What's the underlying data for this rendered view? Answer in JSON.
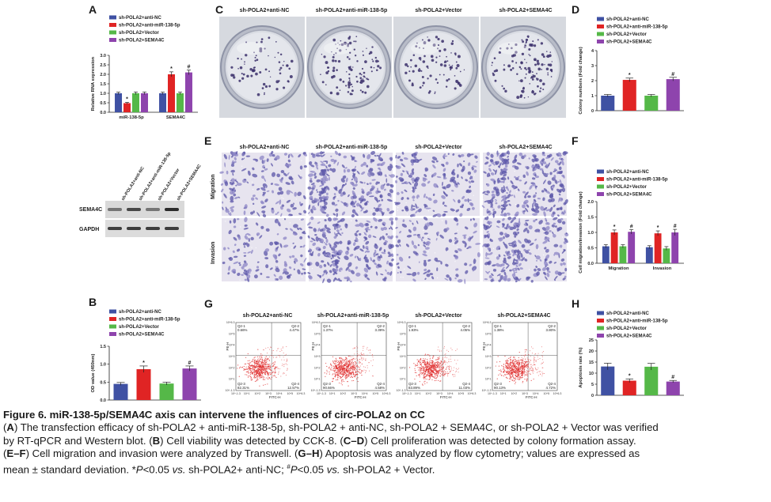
{
  "legend_items": [
    {
      "label": "sh-POLA2+anti-NC",
      "color": "#3f51a3"
    },
    {
      "label": "sh-POLA2+anti-miR-138-5p",
      "color": "#e02424"
    },
    {
      "label": "sh-POLA2+Vector",
      "color": "#55b848"
    },
    {
      "label": "sh-POLA2+SEMA4C",
      "color": "#8e44ad"
    }
  ],
  "panels": {
    "A": {
      "letter": "A"
    },
    "B": {
      "letter": "B"
    },
    "C": {
      "letter": "C"
    },
    "D": {
      "letter": "D"
    },
    "E": {
      "letter": "E"
    },
    "F": {
      "letter": "F"
    },
    "G": {
      "letter": "G"
    },
    "H": {
      "letter": "H"
    }
  },
  "group_labels": [
    "sh-POLA2+anti-NC",
    "sh-POLA2+anti-miR-138-5p",
    "sh-POLA2+Vector",
    "sh-POLA2+SEMA4C"
  ],
  "blot": {
    "lane_labels": [
      "sh-POLA2+anti-NC",
      "sh-POLA2+anti-miR-138-5p",
      "sh-POLA2+Vector",
      "sh-POLA2+SEMA4C"
    ],
    "row_labels": [
      "SEMA4C",
      "GAPDH"
    ]
  },
  "transwell_rows": [
    "Migration",
    "Invasion"
  ],
  "flow": {
    "axis_x": "FITC-H",
    "axis_y": "PE-H",
    "ticks": [
      "10^-1.3",
      "10^1",
      "10^2",
      "10^3",
      "10^4",
      "10^5",
      "10^6.3"
    ],
    "quadrants": [
      {
        "q1": "Q2-1",
        "q1v": "0.66%",
        "q2": "Q2-2",
        "q2v": "4.47%",
        "q3": "Q2-3",
        "q3v": "82.31%",
        "q4": "Q2-4",
        "q4v": "12.57%"
      },
      {
        "q1": "Q2-1",
        "q1v": "1.37%",
        "q2": "Q2-2",
        "q2v": "3.39%",
        "q3": "Q2-3",
        "q3v": "90.66%",
        "q4": "Q2-4",
        "q4v": "4.58%"
      },
      {
        "q1": "Q2-1",
        "q1v": "1.93%",
        "q2": "Q2-2",
        "q2v": "4.05%",
        "q3": "Q2-3",
        "q3v": "83.89%",
        "q4": "Q2-4",
        "q4v": "11.03%"
      },
      {
        "q1": "Q2-1",
        "q1v": "1.38%",
        "q2": "Q2-2",
        "q2v": "3.80%",
        "q3": "Q2-3",
        "q3v": "90.13%",
        "q4": "Q2-4",
        "q4v": "4.72%"
      }
    ]
  },
  "chart_data": [
    {
      "panel": "A",
      "type": "bar",
      "ylabel": "Relative RNA expression",
      "categories": [
        "miR-138-5p",
        "SEMA4C"
      ],
      "ylim": [
        0,
        3.0
      ],
      "yticks": [
        "0.0",
        "0.5",
        "1.0",
        "1.5",
        "2.0",
        "2.5",
        "3.0"
      ],
      "series": [
        {
          "name": "sh-POLA2+anti-NC",
          "values": [
            1.0,
            1.0
          ],
          "err": [
            0.06,
            0.06
          ]
        },
        {
          "name": "sh-POLA2+anti-miR-138-5p",
          "values": [
            0.48,
            2.0
          ],
          "err": [
            0.04,
            0.13
          ]
        },
        {
          "name": "sh-POLA2+Vector",
          "values": [
            1.0,
            1.0
          ],
          "err": [
            0.07,
            0.06
          ]
        },
        {
          "name": "sh-POLA2+SEMA4C",
          "values": [
            1.0,
            2.1
          ],
          "err": [
            0.07,
            0.12
          ]
        }
      ],
      "annotations": [
        {
          "text": "*",
          "category": 0,
          "series": 1
        },
        {
          "text": "*",
          "category": 1,
          "series": 1
        },
        {
          "text": "#",
          "category": 1,
          "series": 3
        }
      ]
    },
    {
      "panel": "B",
      "type": "bar",
      "ylabel": "OD value (450nm)",
      "categories": [
        "sh-POLA2+anti-NC",
        "sh-POLA2+anti-miR-138-5p",
        "sh-POLA2+Vector",
        "sh-POLA2+SEMA4C"
      ],
      "ylim": [
        0,
        1.5
      ],
      "yticks": [
        "0.0",
        "0.5",
        "1.0",
        "1.5"
      ],
      "values": [
        0.45,
        0.86,
        0.46,
        0.88
      ],
      "err": [
        0.04,
        0.09,
        0.04,
        0.07
      ],
      "annotations": [
        {
          "text": "*",
          "index": 1
        },
        {
          "text": "#",
          "index": 3
        }
      ]
    },
    {
      "panel": "D",
      "type": "bar",
      "ylabel": "Colony numbers (Fold change)",
      "categories": [
        "sh-POLA2+anti-NC",
        "sh-POLA2+anti-miR-138-5p",
        "sh-POLA2+Vector",
        "sh-POLA2+SEMA4C"
      ],
      "ylim": [
        0,
        4
      ],
      "yticks": [
        "0",
        "1",
        "2",
        "3",
        "4"
      ],
      "values": [
        1.0,
        2.05,
        1.0,
        2.1
      ],
      "err": [
        0.08,
        0.12,
        0.08,
        0.12
      ],
      "annotations": [
        {
          "text": "*",
          "index": 1
        },
        {
          "text": "#",
          "index": 3
        }
      ]
    },
    {
      "panel": "F",
      "type": "bar",
      "ylabel": "Cell migration/invasion (Fold change)",
      "categories": [
        "Migration",
        "Invasion"
      ],
      "ylim": [
        0,
        2.0
      ],
      "yticks": [
        "0.0",
        "0.5",
        "1.0",
        "1.5",
        "2.0"
      ],
      "series": [
        {
          "name": "sh-POLA2+anti-NC",
          "values": [
            0.55,
            0.52
          ],
          "err": [
            0.05,
            0.05
          ]
        },
        {
          "name": "sh-POLA2+anti-miR-138-5p",
          "values": [
            1.0,
            0.97
          ],
          "err": [
            0.08,
            0.08
          ]
        },
        {
          "name": "sh-POLA2+Vector",
          "values": [
            0.55,
            0.48
          ],
          "err": [
            0.05,
            0.06
          ]
        },
        {
          "name": "sh-POLA2+SEMA4C",
          "values": [
            1.02,
            1.0
          ],
          "err": [
            0.07,
            0.1
          ]
        }
      ],
      "annotations": [
        {
          "text": "*",
          "category": 0,
          "series": 1
        },
        {
          "text": "#",
          "category": 0,
          "series": 3
        },
        {
          "text": "*",
          "category": 1,
          "series": 1
        },
        {
          "text": "#",
          "category": 1,
          "series": 3
        }
      ]
    },
    {
      "panel": "H",
      "type": "bar",
      "ylabel": "Apoptosis rate (%)",
      "categories": [
        "sh-POLA2+anti-NC",
        "sh-POLA2+anti-miR-138-5p",
        "sh-POLA2+Vector",
        "sh-POLA2+SEMA4C"
      ],
      "ylim": [
        0,
        25
      ],
      "yticks": [
        "0",
        "5",
        "10",
        "15",
        "20",
        "25"
      ],
      "values": [
        13.0,
        6.6,
        12.9,
        6.2
      ],
      "err": [
        1.5,
        0.8,
        1.5,
        0.5
      ],
      "annotations": [
        {
          "text": "*",
          "index": 1
        },
        {
          "text": "#",
          "index": 3
        }
      ]
    }
  ],
  "caption": {
    "title": "Figure 6. miR-138-5p/SEMA4C axis can intervene the influences of circ-POLA2 on CC",
    "l1_a": "(",
    "l1_b": "A",
    "l1_c": ") The transfection efficacy of sh-POLA2 + anti-miR-138-5p, sh-POLA2 + anti-NC, sh-POLA2 + SEMA4C, or sh-POLA2 + Vector was verified",
    "l2_a": "by RT-qPCR and Western blot. (",
    "l2_b": "B",
    "l2_c": ") Cell viability was detected by CCK-8. (",
    "l2_d": "C–D",
    "l2_e": ") Cell proliferation was detected by colony formation assay.",
    "l3_a": "(",
    "l3_b": "E–F",
    "l3_c": ") Cell migration and invasion were analyzed by Transwell. (",
    "l3_d": "G–H",
    "l3_e": ") Apoptosis was analyzed by flow cytometry; values are expressed as",
    "l4_a": "mean ± standard deviation. *",
    "l4_b": "P",
    "l4_c": "<0.05 ",
    "l4_d": "vs.",
    "l4_e": " sh-POLA2+ anti-NC; ",
    "l4_f": "#",
    "l4_g": "P",
    "l4_h": "<0.05 ",
    "l4_i": "vs.",
    "l4_j": " sh-POLA2 + Vector."
  }
}
